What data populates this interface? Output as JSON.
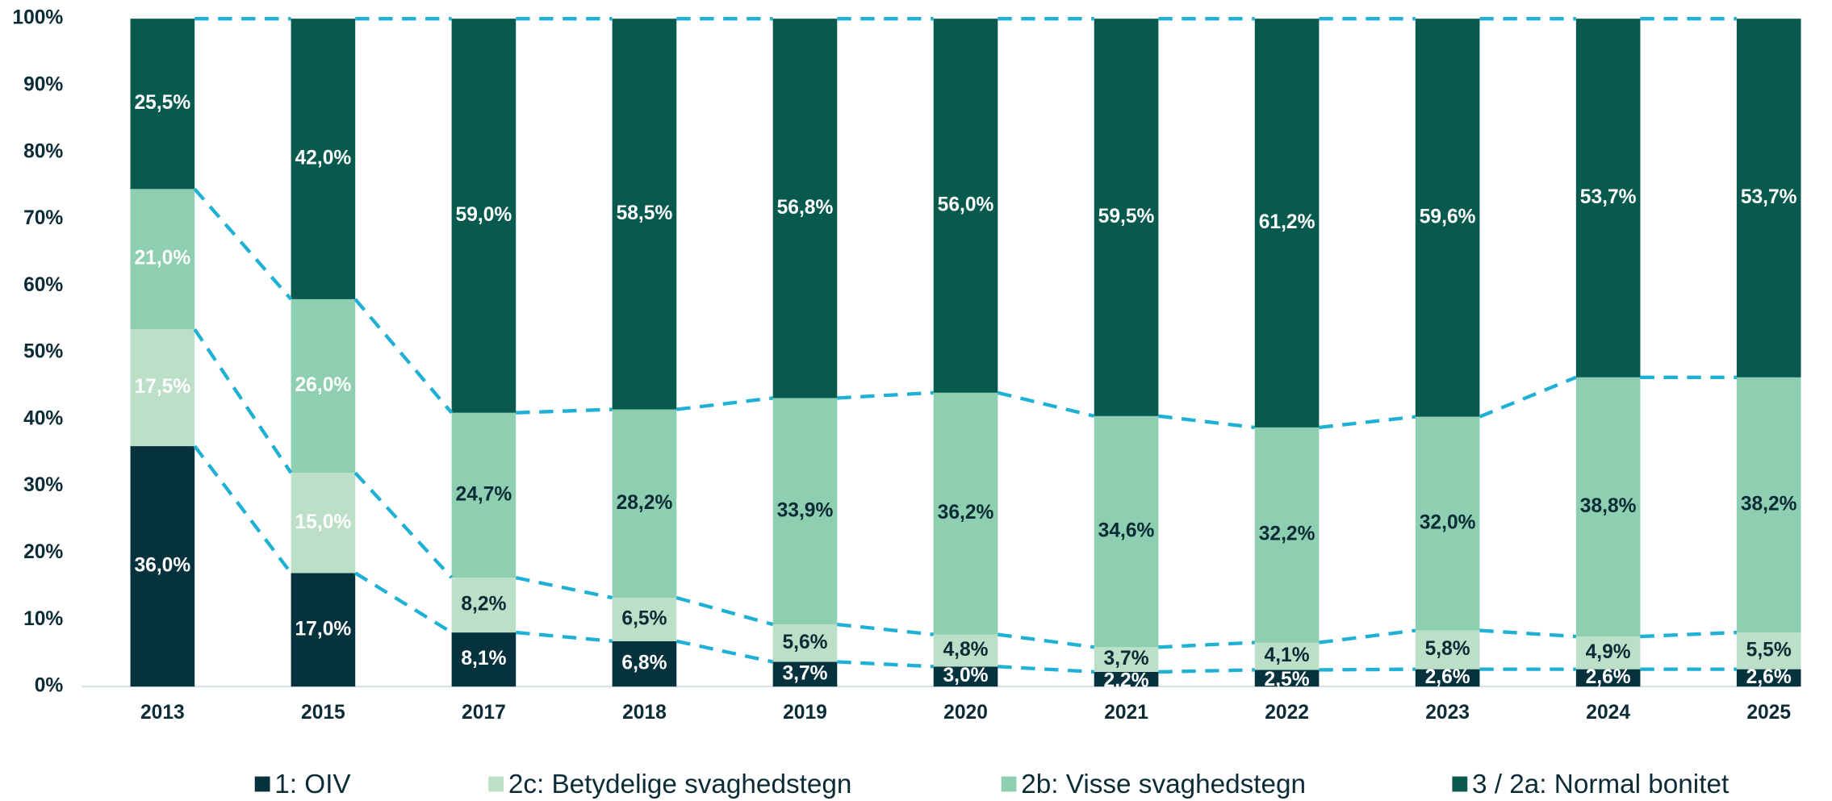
{
  "chart_data": {
    "type": "stacked_bar",
    "categories": [
      "2013",
      "2015",
      "2017",
      "2018",
      "2019",
      "2020",
      "2021",
      "2022",
      "2023",
      "2024",
      "2025"
    ],
    "series": [
      {
        "name": "1: OIV",
        "color": "#06323e",
        "values": [
          36.0,
          17.0,
          8.1,
          6.8,
          3.7,
          3.0,
          2.2,
          2.5,
          2.6,
          2.6,
          2.6
        ],
        "value_labels": [
          "36,0%",
          "17,0%",
          "8,1%",
          "6,8%",
          "3,7%",
          "3,0%",
          "2,2%",
          "2,5%",
          "2,6%",
          "2,6%",
          "2,6%"
        ]
      },
      {
        "name": "2c: Betydelige svaghedstegn",
        "color": "#bcdfc8",
        "values": [
          17.5,
          15.0,
          8.2,
          6.5,
          5.6,
          4.8,
          3.7,
          4.1,
          5.8,
          4.9,
          5.5
        ],
        "value_labels": [
          "17,5%",
          "15,0%",
          "8,2%",
          "6,5%",
          "5,6%",
          "4,8%",
          "3,7%",
          "4,1%",
          "5,8%",
          "4,9%",
          "5,5%"
        ]
      },
      {
        "name": "2b: Visse svaghedstegn",
        "color": "#8dcfb0",
        "values": [
          21.0,
          26.0,
          24.7,
          28.2,
          33.9,
          36.2,
          34.6,
          32.2,
          32.0,
          38.8,
          38.2
        ],
        "value_labels": [
          "21,0%",
          "26,0%",
          "24,7%",
          "28,2%",
          "33,9%",
          "36,2%",
          "34,6%",
          "32,2%",
          "32,0%",
          "38,8%",
          "38,2%"
        ]
      },
      {
        "name": "3 / 2a: Normal bonitet",
        "color": "#085a4e",
        "values": [
          25.5,
          42.0,
          59.0,
          58.5,
          56.8,
          56.0,
          59.5,
          61.2,
          59.6,
          53.7,
          53.7
        ],
        "value_labels": [
          "25,5%",
          "42,0%",
          "59,0%",
          "58,5%",
          "56,8%",
          "56,0%",
          "59,5%",
          "61,2%",
          "59,6%",
          "53,7%",
          "53,7%"
        ]
      }
    ],
    "ylim": [
      0,
      100
    ],
    "yticks": [
      {
        "value": 0,
        "label": "0%"
      },
      {
        "value": 10,
        "label": "10%"
      },
      {
        "value": 20,
        "label": "20%"
      },
      {
        "value": 30,
        "label": "30%"
      },
      {
        "value": 40,
        "label": "40%"
      },
      {
        "value": 50,
        "label": "50%"
      },
      {
        "value": 60,
        "label": "60%"
      },
      {
        "value": 70,
        "label": "70%"
      },
      {
        "value": 80,
        "label": "80%"
      },
      {
        "value": 90,
        "label": "90%"
      },
      {
        "value": 100,
        "label": "100%"
      }
    ],
    "grid": false,
    "legend": "bottom",
    "connector_color": "#1fb0d6"
  }
}
